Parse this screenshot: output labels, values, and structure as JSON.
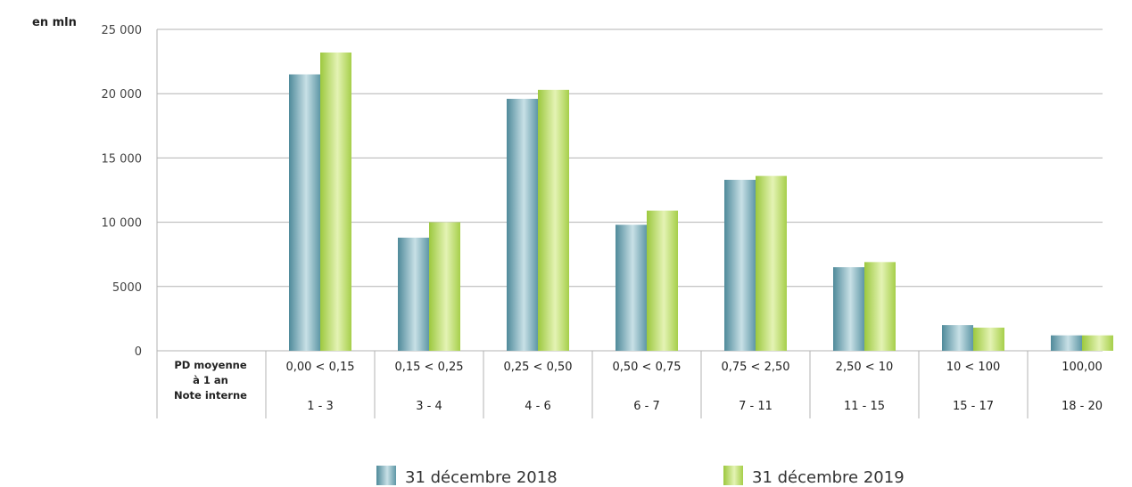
{
  "chart_data": {
    "type": "bar",
    "unit_label": "en mln",
    "row_headers": [
      "PD moyenne",
      "à 1 an",
      "Note interne"
    ],
    "categories": [
      "0,00 < 0,15",
      "0,15 < 0,25",
      "0,25 < 0,50",
      "0,50 < 0,75",
      "0,75 < 2,50",
      "2,50 < 10",
      "10 < 100",
      "100,00"
    ],
    "internal_ratings": [
      "1 - 3",
      "3 - 4",
      "4 - 6",
      "6 - 7",
      "7 - 11",
      "11 - 15",
      "15 - 17",
      "18 - 20"
    ],
    "series": [
      {
        "name": "31 décembre 2018",
        "values": [
          21500,
          8800,
          19600,
          9800,
          13300,
          6500,
          2000,
          1200
        ],
        "color": "#6fa7b5"
      },
      {
        "name": "31 décembre 2019",
        "values": [
          23200,
          10000,
          20300,
          10900,
          13600,
          6900,
          1800,
          1200
        ],
        "color": "#b5d95c"
      }
    ],
    "ylim": [
      0,
      25000
    ],
    "yticks": [
      {
        "value": 0,
        "label": "0"
      },
      {
        "value": 5000,
        "label": "5000"
      },
      {
        "value": 10000,
        "label": "10 000"
      },
      {
        "value": 15000,
        "label": "15 000"
      },
      {
        "value": 20000,
        "label": "20 000"
      },
      {
        "value": 25000,
        "label": "25 000"
      }
    ],
    "grid": true,
    "legend_position": "bottom"
  }
}
